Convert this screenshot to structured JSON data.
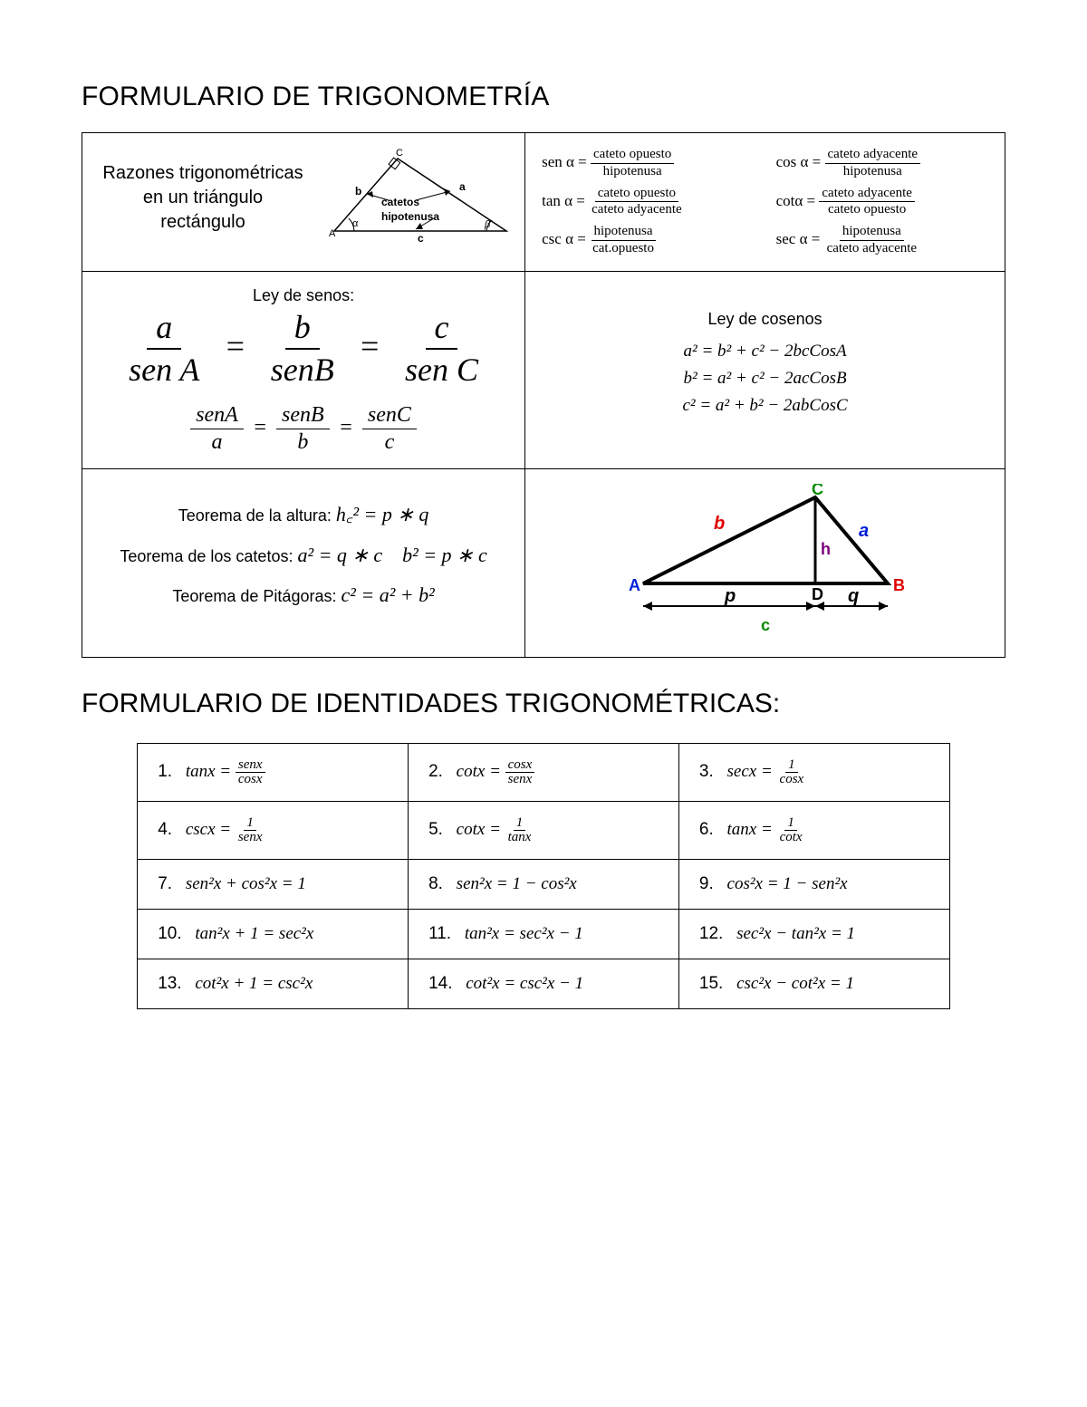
{
  "title1": "FORMULARIO DE TRIGONOMETRÍA",
  "title2": "FORMULARIO DE IDENTIDADES TRIGONOMÉTRICAS:",
  "row1": {
    "left_label": "Razones trigonométricas en un triángulo rectángulo",
    "tri1": {
      "A": "A",
      "B": "B",
      "C": "C",
      "a": "a",
      "b": "b",
      "c": "c",
      "alpha": "α",
      "beta": "β",
      "catetos": "catetos",
      "hipotenusa": "hipotenusa"
    },
    "ratios": {
      "sen": {
        "fn": "sen α =",
        "num": "cateto opuesto",
        "den": "hipotenusa"
      },
      "cos": {
        "fn": "cos α =",
        "num": "cateto  adyacente",
        "den": "hipotenusa"
      },
      "tan": {
        "fn": "tan α =",
        "num": "cateto opuesto",
        "den": "cateto adyacente"
      },
      "cot": {
        "fn": "cotα =",
        "num": "cateto adyacente",
        "den": "cateto opuesto"
      },
      "csc": {
        "fn": "csc α =",
        "num": "hipotenusa",
        "den": "cat.opuesto"
      },
      "sec": {
        "fn": "sec α =",
        "num": "hipotenusa",
        "den": "cateto adyacente"
      }
    }
  },
  "row2": {
    "sines_title": "Ley de senos:",
    "sines1": {
      "a": "a",
      "sA": "sen A",
      "b": "b",
      "sB": "senB",
      "c": "c",
      "sC": "sen C",
      "eq": "="
    },
    "sines2": {
      "sA": "senA",
      "a": "a",
      "sB": "senB",
      "b": "b",
      "sC": "senC",
      "c": "c",
      "eq": "="
    },
    "cos_title": "Ley de cosenos",
    "cos_eqs": [
      "a² = b² + c² − 2bcCosA",
      "b² = a² + c² − 2acCosB",
      "c² = a² + b² − 2abCosC"
    ]
  },
  "row3": {
    "altura_label": "Teorema de la altura: ",
    "altura_math": "h꜀² = p ∗ q",
    "catetos_label": "Teorema de los catetos:  ",
    "catetos_math": "a² = q ∗ c    b² = p ∗ c",
    "pit_label": "Teorema de Pitágoras: ",
    "pit_math": "c² = a² + b²",
    "tri2": {
      "A": "A",
      "B": "B",
      "C": "C",
      "D": "D",
      "a": "a",
      "b": "b",
      "h": "h",
      "p": "p",
      "q": "q",
      "c": "c",
      "color_A": "#0020d8",
      "color_B": "#e00000",
      "color_C": "#028a00",
      "color_D": "#000",
      "color_a": "#0020d8",
      "color_b": "#e00000",
      "color_h": "#7a007a",
      "color_pqc": "#000"
    }
  },
  "ident_rows": [
    [
      {
        "n": "1.",
        "lhs": "tanx =",
        "num": "senx",
        "den": "cosx"
      },
      {
        "n": "2.",
        "lhs": "cotx =",
        "num": "cosx",
        "den": "senx"
      },
      {
        "n": "3.",
        "lhs": "secx =",
        "num": "1",
        "den": "cosx"
      }
    ],
    [
      {
        "n": "4.",
        "lhs": "cscx =",
        "num": "1",
        "den": "senx"
      },
      {
        "n": "5.",
        "lhs": "cotx =",
        "num": "1",
        "den": "tanx"
      },
      {
        "n": "6.",
        "lhs": "tanx =",
        "num": "1",
        "den": "cotx"
      }
    ],
    [
      {
        "n": "7.",
        "plain": "sen²x + cos²x = 1"
      },
      {
        "n": "8.",
        "plain": "sen²x =  1 − cos²x"
      },
      {
        "n": "9.",
        "plain": "cos²x =  1 − sen²x"
      }
    ],
    [
      {
        "n": "10.",
        "plain": "tan²x + 1 = sec²x"
      },
      {
        "n": "11.",
        "plain": "tan²x = sec²x − 1"
      },
      {
        "n": "12.",
        "plain": "sec²x − tan²x = 1"
      }
    ],
    [
      {
        "n": "13.",
        "plain": "cot²x + 1 = csc²x"
      },
      {
        "n": "14.",
        "plain": "cot²x = csc²x − 1"
      },
      {
        "n": "15.",
        "plain": "csc²x − cot²x = 1"
      }
    ]
  ]
}
